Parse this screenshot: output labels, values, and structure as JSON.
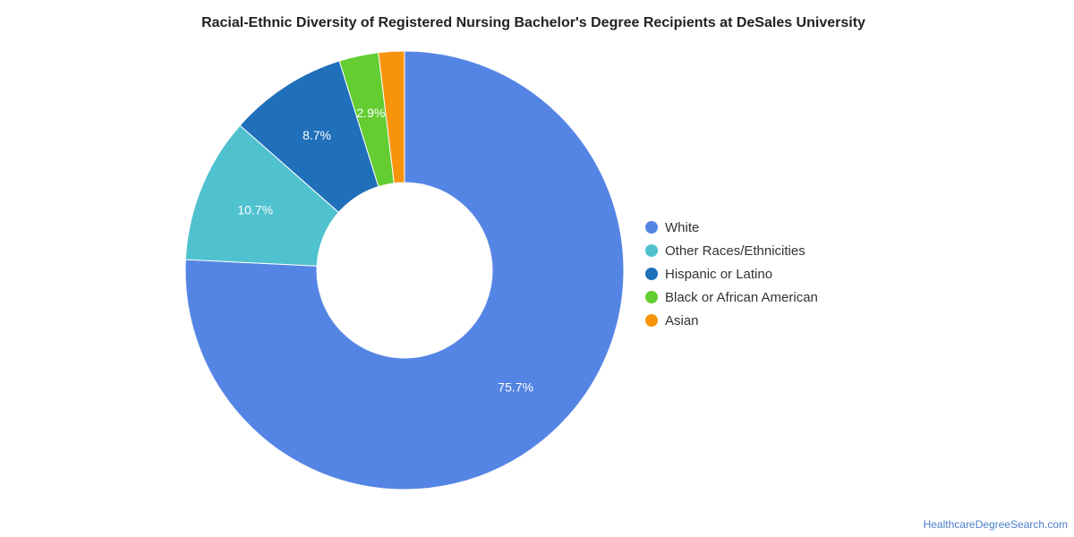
{
  "chart_data": {
    "type": "pie",
    "variant": "donut",
    "title": "Racial-Ethnic Diversity of Registered Nursing Bachelor's Degree Recipients at DeSales University",
    "slices": [
      {
        "label": "White",
        "value": 75.7,
        "display": "75.7%",
        "color": "#5585e4"
      },
      {
        "label": "Other Races/Ethnicities",
        "value": 10.7,
        "display": "10.7%",
        "color": "#50c1cf"
      },
      {
        "label": "Hispanic or Latino",
        "value": 8.7,
        "display": "8.7%",
        "color": "#1f6fba"
      },
      {
        "label": "Black or African American",
        "value": 2.9,
        "display": "2.9%",
        "color": "#63cd32"
      },
      {
        "label": "Asian",
        "value": 1.9,
        "display": "",
        "color": "#f7940c"
      }
    ],
    "legend_position": "right",
    "start": "top, clockwise"
  },
  "source": {
    "label": "HealthcareDegreeSearch.com"
  }
}
